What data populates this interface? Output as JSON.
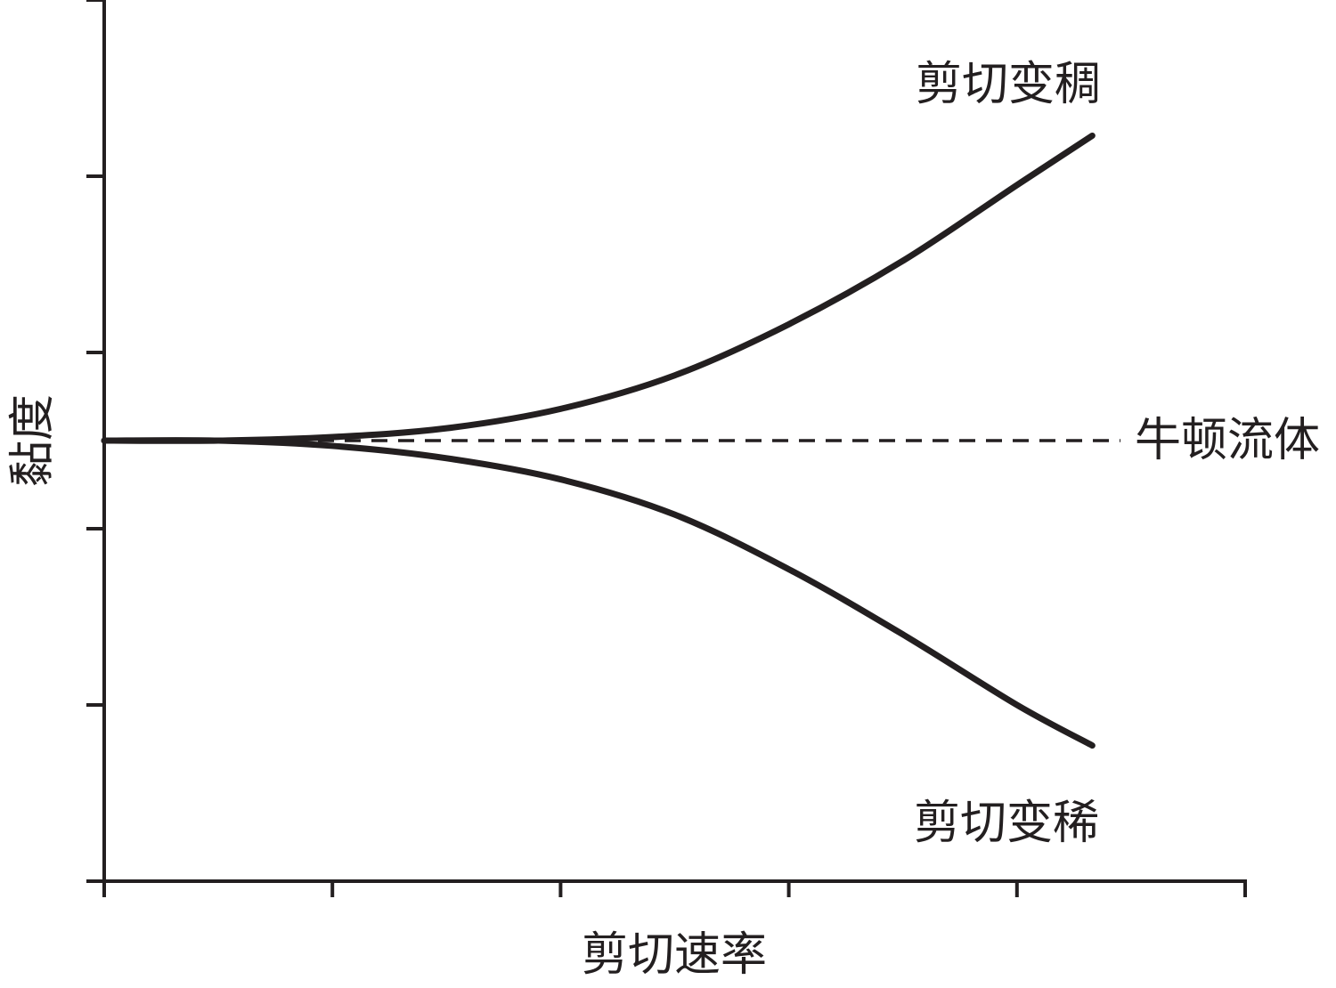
{
  "chart_data": {
    "type": "line",
    "xlabel": "剪切速率",
    "ylabel": "黏度",
    "x_tick_count": 6,
    "y_tick_count": 6,
    "series": [
      {
        "name": "剪切变稠",
        "style": "solid",
        "x": [
          0,
          0.5,
          1.0,
          1.5,
          2.0,
          2.5,
          3.0,
          3.5,
          4.0,
          4.33
        ],
        "values": [
          0,
          0,
          0.02,
          0.07,
          0.18,
          0.37,
          0.66,
          1.02,
          1.45,
          1.73
        ]
      },
      {
        "name": "牛顿流体",
        "style": "dashed",
        "x": [
          0,
          4.33
        ],
        "values": [
          0,
          0
        ]
      },
      {
        "name": "剪切变稀",
        "style": "solid",
        "x": [
          0,
          0.5,
          1.0,
          1.5,
          2.0,
          2.5,
          3.0,
          3.5,
          4.0,
          4.33
        ],
        "values": [
          0,
          0,
          -0.03,
          -0.1,
          -0.22,
          -0.42,
          -0.73,
          -1.1,
          -1.5,
          -1.73
        ]
      }
    ],
    "annotations": {
      "thickening": "剪切变稠",
      "newtonian": "牛顿流体",
      "thinning": "剪切变稀"
    },
    "xlim": [
      0,
      5
    ],
    "ylim": [
      -2.5,
      2.5
    ],
    "grid": false,
    "colors": {
      "ink": "#231f20"
    }
  }
}
